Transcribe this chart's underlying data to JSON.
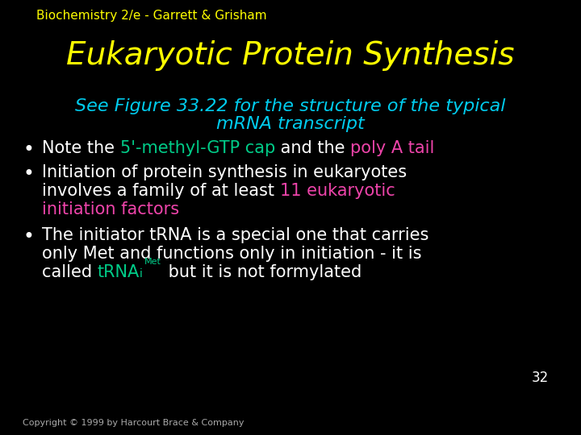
{
  "background_color": "#000000",
  "header_text": "Biochemistry 2/e - Garrett & Grisham",
  "header_color": "#ffff00",
  "header_fontsize": 11,
  "title_text": "Eukaryotic Protein Synthesis",
  "title_color": "#ffff00",
  "title_fontsize": 28,
  "subtitle_line1": "See Figure 33.22 for the structure of the typical",
  "subtitle_line2": "mRNA transcript",
  "subtitle_color": "#00ccee",
  "subtitle_fontsize": 16,
  "bullet_color": "#ffffff",
  "bullet_fontsize": 15,
  "cyan_color": "#00cc88",
  "pink_color": "#ee44aa",
  "page_number": "32",
  "page_color": "#ffffff",
  "copyright_text": "Copyright © 1999 by Harcourt Brace & Company",
  "copyright_color": "#aaaaaa",
  "copyright_fontsize": 8
}
